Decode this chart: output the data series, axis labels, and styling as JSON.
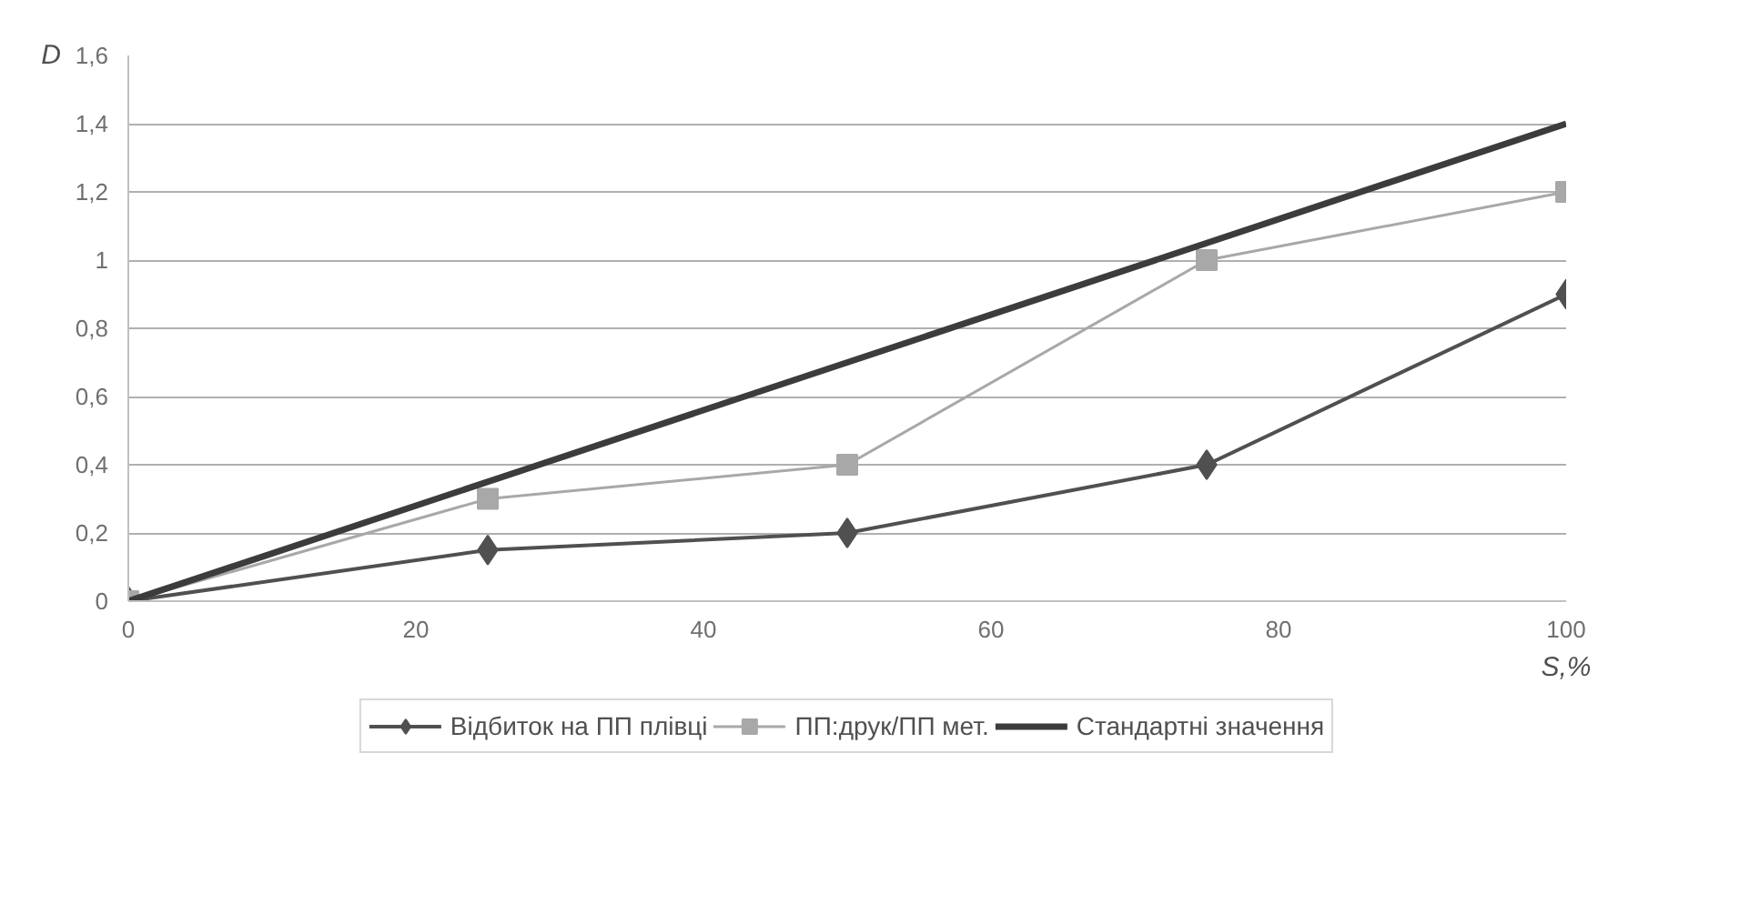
{
  "chart_data": {
    "type": "line",
    "xlabel": "S,%",
    "ylabel": "D",
    "x": [
      0,
      25,
      50,
      75,
      100
    ],
    "series": [
      {
        "name": "Відбиток на ПП плівці",
        "color": "#505050",
        "marker": "diamond",
        "values": [
          0,
          0.15,
          0.2,
          0.4,
          0.9
        ]
      },
      {
        "name": "ПП:друк/ПП мет.",
        "color": "#a8a8a8",
        "marker": "square",
        "values": [
          0,
          0.3,
          0.4,
          1.0,
          1.2
        ]
      },
      {
        "name": "Стандартні значення",
        "color": "#3c3c3c",
        "marker": "none",
        "x": [
          0,
          100
        ],
        "values": [
          0,
          1.4
        ]
      }
    ],
    "xlim": [
      0,
      100
    ],
    "xticks": [
      0,
      20,
      40,
      60,
      80,
      100
    ],
    "ylim": [
      0,
      1.6
    ],
    "yticks": [
      0,
      {
        "value": 0.2,
        "label": "0,2"
      },
      {
        "value": 0.4,
        "label": "0,4"
      },
      {
        "value": 0.6,
        "label": "0,6"
      },
      {
        "value": 0.8,
        "label": "0,8"
      },
      1,
      {
        "value": 1.2,
        "label": "1,2"
      },
      {
        "value": 1.4,
        "label": "1,4"
      },
      {
        "value": 1.6,
        "label": "1,6"
      }
    ],
    "grid": "y",
    "legend": "bottom"
  }
}
